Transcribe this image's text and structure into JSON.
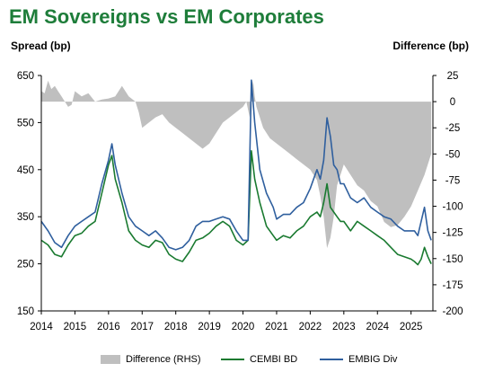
{
  "title": "EM Sovereigns vs EM Corporates",
  "left_axis_title": "Spread (bp)",
  "right_axis_title": "Difference (bp)",
  "colors": {
    "title": "#1e7d3a",
    "difference": "#bfbfbf",
    "cembi": "#1a7a30",
    "embig": "#2f5f9e"
  },
  "chart_data": {
    "type": "line",
    "x_ticks": [
      "2014",
      "2015",
      "2016",
      "2017",
      "2018",
      "2019",
      "2020",
      "2021",
      "2022",
      "2023",
      "2024",
      "2025"
    ],
    "xlim": [
      2014.0,
      2025.65
    ],
    "y_left_ticks": [
      "650",
      "550",
      "450",
      "350",
      "250",
      "150"
    ],
    "ylim_left": [
      150,
      650
    ],
    "y_right_ticks": [
      "25",
      "0",
      "-25",
      "-50",
      "-75",
      "-100",
      "-125",
      "-150",
      "-175",
      "-200"
    ],
    "ylim_right": [
      -200,
      25
    ],
    "legend_position": "bottom",
    "series": [
      {
        "name": "Difference (RHS)",
        "kind": "area",
        "axis": "right",
        "x": [
          2014.0,
          2014.1,
          2014.2,
          2014.3,
          2014.4,
          2014.5,
          2014.6,
          2014.7,
          2014.8,
          2014.9,
          2015.0,
          2015.2,
          2015.4,
          2015.6,
          2015.8,
          2016.0,
          2016.2,
          2016.4,
          2016.6,
          2016.8,
          2016.9,
          2017.0,
          2017.2,
          2017.4,
          2017.6,
          2017.8,
          2018.0,
          2018.2,
          2018.4,
          2018.6,
          2018.8,
          2019.0,
          2019.2,
          2019.4,
          2019.6,
          2019.8,
          2020.0,
          2020.1,
          2020.2,
          2020.25,
          2020.3,
          2020.35,
          2020.4,
          2020.5,
          2020.6,
          2020.8,
          2021.0,
          2021.2,
          2021.4,
          2021.6,
          2021.8,
          2022.0,
          2022.2,
          2022.3,
          2022.4,
          2022.5,
          2022.6,
          2022.7,
          2022.8,
          2022.9,
          2023.0,
          2023.2,
          2023.4,
          2023.6,
          2023.8,
          2024.0,
          2024.2,
          2024.4,
          2024.6,
          2024.8,
          2025.0,
          2025.2,
          2025.4,
          2025.6
        ],
        "values": [
          10,
          8,
          20,
          12,
          15,
          10,
          5,
          0,
          -5,
          -3,
          10,
          5,
          8,
          0,
          2,
          3,
          5,
          15,
          5,
          0,
          -10,
          -25,
          -20,
          -15,
          -12,
          -20,
          -25,
          -30,
          -35,
          -40,
          -45,
          -40,
          -30,
          -20,
          -15,
          -10,
          -5,
          0,
          -15,
          10,
          20,
          5,
          -5,
          -15,
          -25,
          -35,
          -40,
          -45,
          -50,
          -55,
          -60,
          -65,
          -75,
          -90,
          -110,
          -140,
          -130,
          -110,
          -80,
          -70,
          -60,
          -70,
          -80,
          -85,
          -95,
          -100,
          -115,
          -120,
          -118,
          -110,
          -100,
          -85,
          -70,
          -50
        ]
      },
      {
        "name": "CEMBI BD",
        "kind": "line",
        "axis": "left",
        "x": [
          2014.0,
          2014.2,
          2014.4,
          2014.6,
          2014.8,
          2015.0,
          2015.2,
          2015.4,
          2015.6,
          2015.8,
          2016.0,
          2016.1,
          2016.2,
          2016.4,
          2016.6,
          2016.8,
          2017.0,
          2017.2,
          2017.4,
          2017.6,
          2017.8,
          2018.0,
          2018.2,
          2018.4,
          2018.6,
          2018.8,
          2019.0,
          2019.2,
          2019.4,
          2019.6,
          2019.8,
          2020.0,
          2020.15,
          2020.25,
          2020.35,
          2020.5,
          2020.7,
          2020.9,
          2021.0,
          2021.2,
          2021.4,
          2021.6,
          2021.8,
          2022.0,
          2022.2,
          2022.3,
          2022.4,
          2022.5,
          2022.6,
          2022.7,
          2022.8,
          2022.9,
          2023.0,
          2023.2,
          2023.4,
          2023.6,
          2023.8,
          2024.0,
          2024.2,
          2024.4,
          2024.6,
          2024.8,
          2025.0,
          2025.1,
          2025.2,
          2025.3,
          2025.4,
          2025.5,
          2025.6
        ],
        "values": [
          300,
          290,
          270,
          265,
          290,
          310,
          315,
          330,
          340,
          400,
          460,
          480,
          430,
          380,
          320,
          300,
          290,
          285,
          300,
          295,
          270,
          260,
          255,
          275,
          300,
          305,
          315,
          330,
          340,
          330,
          300,
          290,
          300,
          490,
          430,
          380,
          330,
          310,
          300,
          310,
          305,
          320,
          330,
          350,
          360,
          350,
          380,
          420,
          370,
          360,
          350,
          340,
          340,
          320,
          340,
          330,
          320,
          310,
          300,
          285,
          270,
          265,
          260,
          255,
          248,
          260,
          285,
          265,
          250
        ]
      },
      {
        "name": "EMBIG Div",
        "kind": "line",
        "axis": "left",
        "x": [
          2014.0,
          2014.2,
          2014.4,
          2014.6,
          2014.8,
          2015.0,
          2015.2,
          2015.4,
          2015.6,
          2015.8,
          2016.0,
          2016.1,
          2016.2,
          2016.4,
          2016.6,
          2016.8,
          2017.0,
          2017.2,
          2017.4,
          2017.6,
          2017.8,
          2018.0,
          2018.2,
          2018.4,
          2018.6,
          2018.8,
          2019.0,
          2019.2,
          2019.4,
          2019.6,
          2019.8,
          2020.0,
          2020.15,
          2020.25,
          2020.35,
          2020.5,
          2020.7,
          2020.9,
          2021.0,
          2021.2,
          2021.4,
          2021.6,
          2021.8,
          2022.0,
          2022.2,
          2022.3,
          2022.4,
          2022.5,
          2022.6,
          2022.7,
          2022.8,
          2022.9,
          2023.0,
          2023.2,
          2023.4,
          2023.6,
          2023.8,
          2024.0,
          2024.2,
          2024.4,
          2024.6,
          2024.8,
          2025.0,
          2025.1,
          2025.2,
          2025.3,
          2025.4,
          2025.5,
          2025.6
        ],
        "values": [
          340,
          320,
          295,
          285,
          310,
          330,
          340,
          350,
          360,
          420,
          470,
          505,
          460,
          400,
          350,
          330,
          320,
          310,
          320,
          305,
          285,
          280,
          285,
          300,
          330,
          340,
          340,
          345,
          350,
          345,
          320,
          300,
          300,
          640,
          550,
          450,
          400,
          370,
          345,
          355,
          355,
          370,
          380,
          410,
          450,
          430,
          470,
          560,
          520,
          460,
          450,
          420,
          420,
          390,
          380,
          390,
          370,
          360,
          350,
          345,
          330,
          320,
          320,
          320,
          310,
          340,
          370,
          320,
          300
        ]
      }
    ]
  }
}
